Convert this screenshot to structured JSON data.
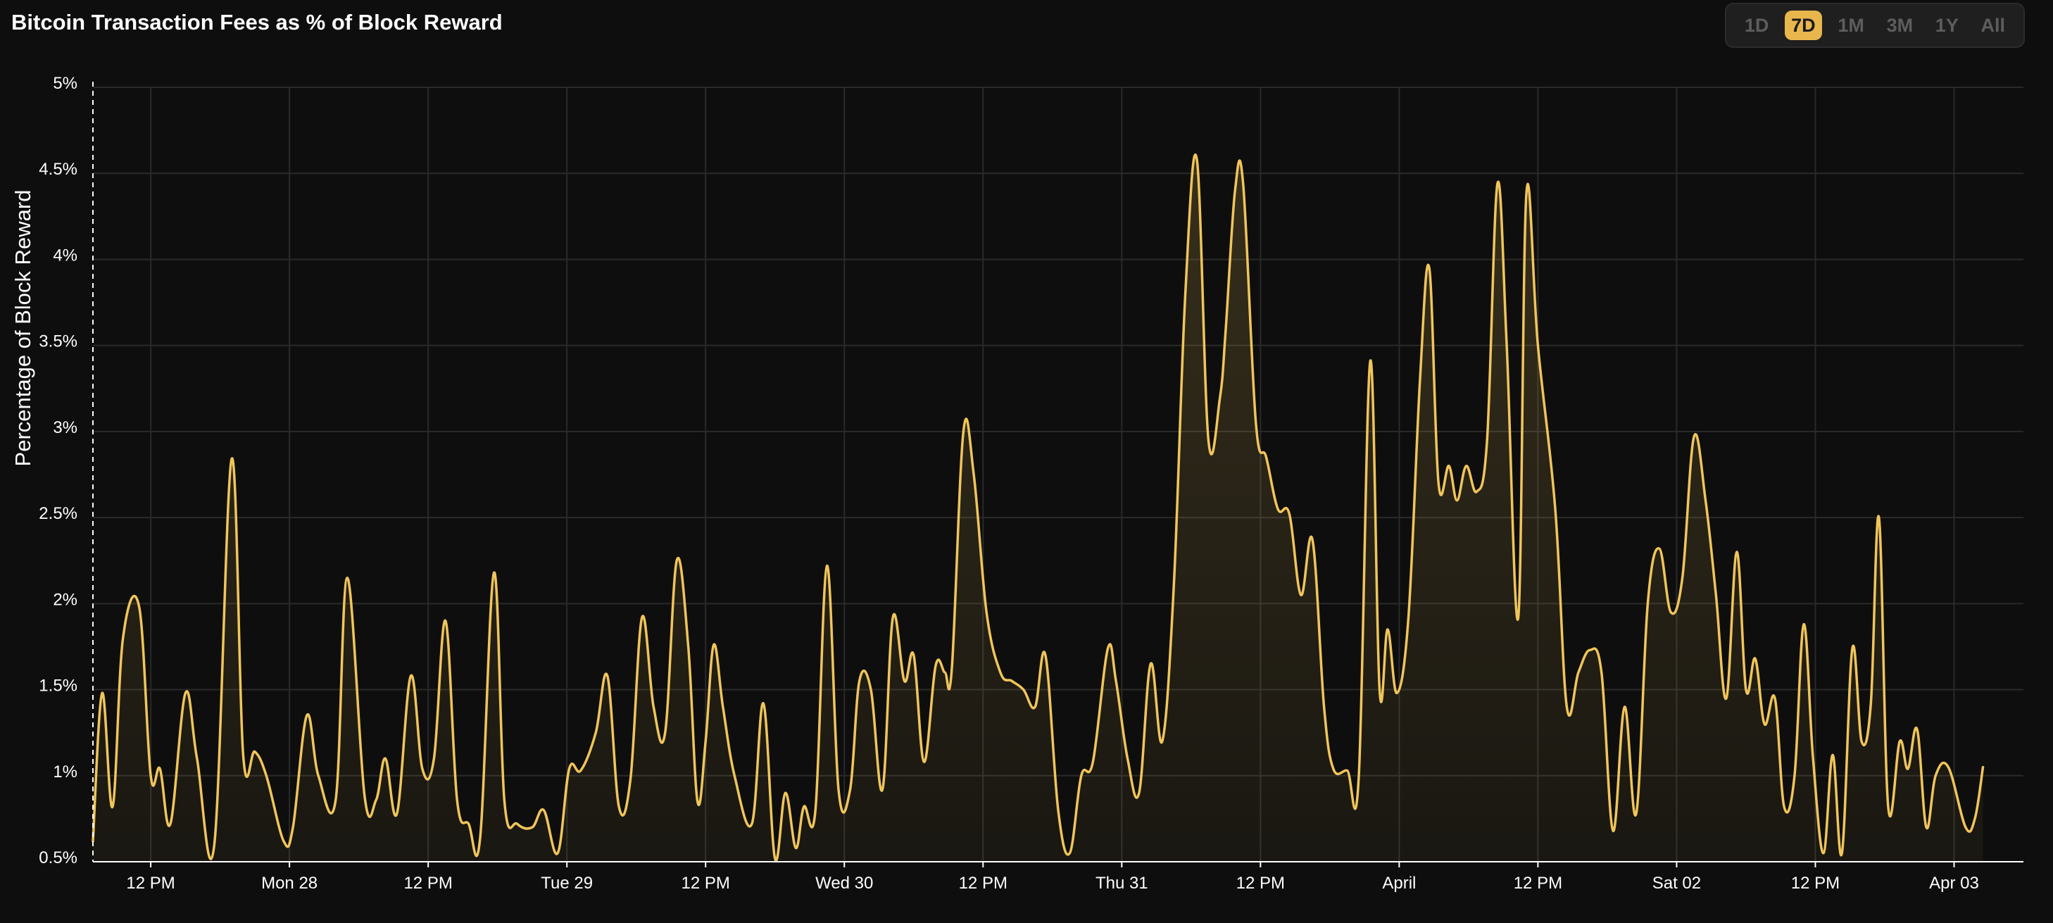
{
  "title": "Bitcoin Transaction Fees as % of Block Reward",
  "range_buttons": [
    {
      "label": "1D",
      "active": false
    },
    {
      "label": "7D",
      "active": true
    },
    {
      "label": "1M",
      "active": false
    },
    {
      "label": "3M",
      "active": false
    },
    {
      "label": "1Y",
      "active": false
    },
    {
      "label": "All",
      "active": false
    }
  ],
  "colors": {
    "background": "#0e0e0e",
    "line": "#f0c55a",
    "fill": "#f0c55a",
    "grid": "#2a2a2a",
    "active_button": "#e8b64c"
  },
  "chart_data": {
    "type": "area",
    "title": "Bitcoin Transaction Fees as % of Block Reward",
    "ylabel": "Percentage of Block Reward",
    "xlabel": "",
    "ylim": [
      0.5,
      5
    ],
    "yticks": [
      {
        "value": 0.5,
        "label": "0.5%"
      },
      {
        "value": 1,
        "label": "1%"
      },
      {
        "value": 1.5,
        "label": "1.5%"
      },
      {
        "value": 2,
        "label": "2%"
      },
      {
        "value": 2.5,
        "label": "2.5%"
      },
      {
        "value": 3,
        "label": "3%"
      },
      {
        "value": 3.5,
        "label": "3.5%"
      },
      {
        "value": 4,
        "label": "4%"
      },
      {
        "value": 4.5,
        "label": "4.5%"
      },
      {
        "value": 5,
        "label": "5%"
      }
    ],
    "x_unit": "hours",
    "xlim": [
      -5,
      162
    ],
    "xticks": [
      {
        "value": 0,
        "label": "12 PM"
      },
      {
        "value": 12,
        "label": "Mon 28"
      },
      {
        "value": 24,
        "label": "12 PM"
      },
      {
        "value": 36,
        "label": "Tue 29"
      },
      {
        "value": 48,
        "label": "12 PM"
      },
      {
        "value": 60,
        "label": "Wed 30"
      },
      {
        "value": 72,
        "label": "12 PM"
      },
      {
        "value": 84,
        "label": "Thu 31"
      },
      {
        "value": 96,
        "label": "12 PM"
      },
      {
        "value": 108,
        "label": "April"
      },
      {
        "value": 120,
        "label": "12 PM"
      },
      {
        "value": 132,
        "label": "Sat 02"
      },
      {
        "value": 144,
        "label": "12 PM"
      },
      {
        "value": 156,
        "label": "Apr 03"
      }
    ],
    "grid": true,
    "legend": "none",
    "series": [
      {
        "points": [
          [
            -5.0,
            0.62
          ],
          [
            -4.2,
            1.48
          ],
          [
            -3.3,
            0.82
          ],
          [
            -2.4,
            1.8
          ],
          [
            -1.0,
            1.98
          ],
          [
            0.0,
            1.0
          ],
          [
            0.8,
            1.04
          ],
          [
            1.7,
            0.72
          ],
          [
            3.0,
            1.48
          ],
          [
            4.0,
            1.1
          ],
          [
            5.5,
            0.6
          ],
          [
            7.0,
            2.84
          ],
          [
            8.0,
            1.12
          ],
          [
            9.0,
            1.14
          ],
          [
            10.0,
            1.0
          ],
          [
            11.5,
            0.62
          ],
          [
            12.3,
            0.7
          ],
          [
            13.5,
            1.35
          ],
          [
            14.5,
            1.0
          ],
          [
            16.0,
            0.86
          ],
          [
            17.0,
            2.15
          ],
          [
            18.5,
            0.88
          ],
          [
            19.5,
            0.86
          ],
          [
            20.3,
            1.1
          ],
          [
            21.3,
            0.78
          ],
          [
            22.5,
            1.58
          ],
          [
            23.5,
            1.04
          ],
          [
            24.5,
            1.1
          ],
          [
            25.5,
            1.9
          ],
          [
            26.5,
            0.86
          ],
          [
            27.5,
            0.72
          ],
          [
            28.5,
            0.64
          ],
          [
            29.7,
            2.18
          ],
          [
            30.6,
            0.85
          ],
          [
            31.7,
            0.72
          ],
          [
            33.0,
            0.7
          ],
          [
            34.0,
            0.8
          ],
          [
            35.2,
            0.55
          ],
          [
            36.2,
            1.04
          ],
          [
            37.2,
            1.03
          ],
          [
            38.5,
            1.25
          ],
          [
            39.5,
            1.58
          ],
          [
            40.5,
            0.82
          ],
          [
            41.5,
            0.98
          ],
          [
            42.5,
            1.92
          ],
          [
            43.5,
            1.4
          ],
          [
            44.5,
            1.25
          ],
          [
            45.5,
            2.25
          ],
          [
            46.5,
            1.75
          ],
          [
            47.3,
            0.85
          ],
          [
            48.0,
            1.2
          ],
          [
            48.7,
            1.76
          ],
          [
            49.5,
            1.4
          ],
          [
            50.5,
            1.0
          ],
          [
            52.0,
            0.72
          ],
          [
            53.0,
            1.42
          ],
          [
            54.0,
            0.52
          ],
          [
            54.9,
            0.9
          ],
          [
            55.8,
            0.58
          ],
          [
            56.5,
            0.82
          ],
          [
            57.5,
            0.8
          ],
          [
            58.5,
            2.22
          ],
          [
            59.5,
            0.92
          ],
          [
            60.5,
            0.92
          ],
          [
            61.3,
            1.55
          ],
          [
            62.3,
            1.5
          ],
          [
            63.3,
            0.92
          ],
          [
            64.2,
            1.92
          ],
          [
            65.2,
            1.55
          ],
          [
            66.0,
            1.7
          ],
          [
            66.9,
            1.08
          ],
          [
            67.9,
            1.64
          ],
          [
            68.7,
            1.6
          ],
          [
            69.3,
            1.62
          ],
          [
            70.3,
            3.0
          ],
          [
            71.2,
            2.75
          ],
          [
            72.3,
            1.95
          ],
          [
            73.5,
            1.6
          ],
          [
            74.5,
            1.55
          ],
          [
            75.5,
            1.5
          ],
          [
            76.5,
            1.4
          ],
          [
            77.4,
            1.7
          ],
          [
            78.5,
            0.8
          ],
          [
            79.5,
            0.55
          ],
          [
            80.5,
            1.0
          ],
          [
            81.5,
            1.08
          ],
          [
            82.8,
            1.74
          ],
          [
            83.5,
            1.55
          ],
          [
            84.5,
            1.1
          ],
          [
            85.5,
            0.9
          ],
          [
            86.5,
            1.65
          ],
          [
            87.5,
            1.2
          ],
          [
            88.5,
            2.1
          ],
          [
            89.5,
            3.8
          ],
          [
            90.5,
            4.58
          ],
          [
            91.5,
            2.95
          ],
          [
            92.5,
            3.2
          ],
          [
            93.0,
            3.6
          ],
          [
            93.8,
            4.4
          ],
          [
            94.5,
            4.44
          ],
          [
            95.6,
            3.05
          ],
          [
            96.5,
            2.85
          ],
          [
            97.5,
            2.55
          ],
          [
            98.5,
            2.52
          ],
          [
            99.5,
            2.05
          ],
          [
            100.5,
            2.37
          ],
          [
            101.5,
            1.4
          ],
          [
            102.3,
            1.04
          ],
          [
            103.5,
            1.03
          ],
          [
            104.5,
            0.99
          ],
          [
            105.5,
            3.41
          ],
          [
            106.3,
            1.5
          ],
          [
            107.0,
            1.85
          ],
          [
            107.8,
            1.48
          ],
          [
            108.8,
            1.92
          ],
          [
            109.8,
            3.3
          ],
          [
            110.6,
            3.95
          ],
          [
            111.4,
            2.7
          ],
          [
            112.3,
            2.8
          ],
          [
            113.0,
            2.6
          ],
          [
            113.8,
            2.8
          ],
          [
            114.7,
            2.65
          ],
          [
            115.6,
            2.95
          ],
          [
            116.5,
            4.44
          ],
          [
            117.3,
            3.5
          ],
          [
            118.3,
            1.92
          ],
          [
            119.0,
            4.38
          ],
          [
            120.0,
            3.5
          ],
          [
            121.5,
            2.55
          ],
          [
            122.5,
            1.4
          ],
          [
            123.5,
            1.6
          ],
          [
            124.5,
            1.73
          ],
          [
            125.5,
            1.6
          ],
          [
            126.5,
            0.68
          ],
          [
            127.5,
            1.4
          ],
          [
            128.5,
            0.78
          ],
          [
            129.5,
            2.0
          ],
          [
            130.5,
            2.32
          ],
          [
            131.5,
            1.95
          ],
          [
            132.5,
            2.15
          ],
          [
            133.5,
            2.97
          ],
          [
            134.5,
            2.6
          ],
          [
            135.4,
            2.05
          ],
          [
            136.3,
            1.45
          ],
          [
            137.2,
            2.3
          ],
          [
            138.0,
            1.5
          ],
          [
            138.8,
            1.68
          ],
          [
            139.6,
            1.3
          ],
          [
            140.5,
            1.45
          ],
          [
            141.3,
            0.82
          ],
          [
            142.2,
            1.0
          ],
          [
            143.0,
            1.88
          ],
          [
            143.8,
            1.1
          ],
          [
            144.7,
            0.55
          ],
          [
            145.5,
            1.12
          ],
          [
            146.3,
            0.55
          ],
          [
            147.2,
            1.74
          ],
          [
            148.0,
            1.2
          ],
          [
            148.8,
            1.42
          ],
          [
            149.5,
            2.5
          ],
          [
            150.3,
            0.82
          ],
          [
            151.3,
            1.2
          ],
          [
            152.0,
            1.04
          ],
          [
            152.8,
            1.27
          ],
          [
            153.6,
            0.7
          ],
          [
            154.4,
            1.0
          ],
          [
            155.5,
            1.05
          ],
          [
            157.0,
            0.7
          ],
          [
            157.8,
            0.75
          ],
          [
            158.5,
            1.05
          ]
        ]
      }
    ]
  }
}
